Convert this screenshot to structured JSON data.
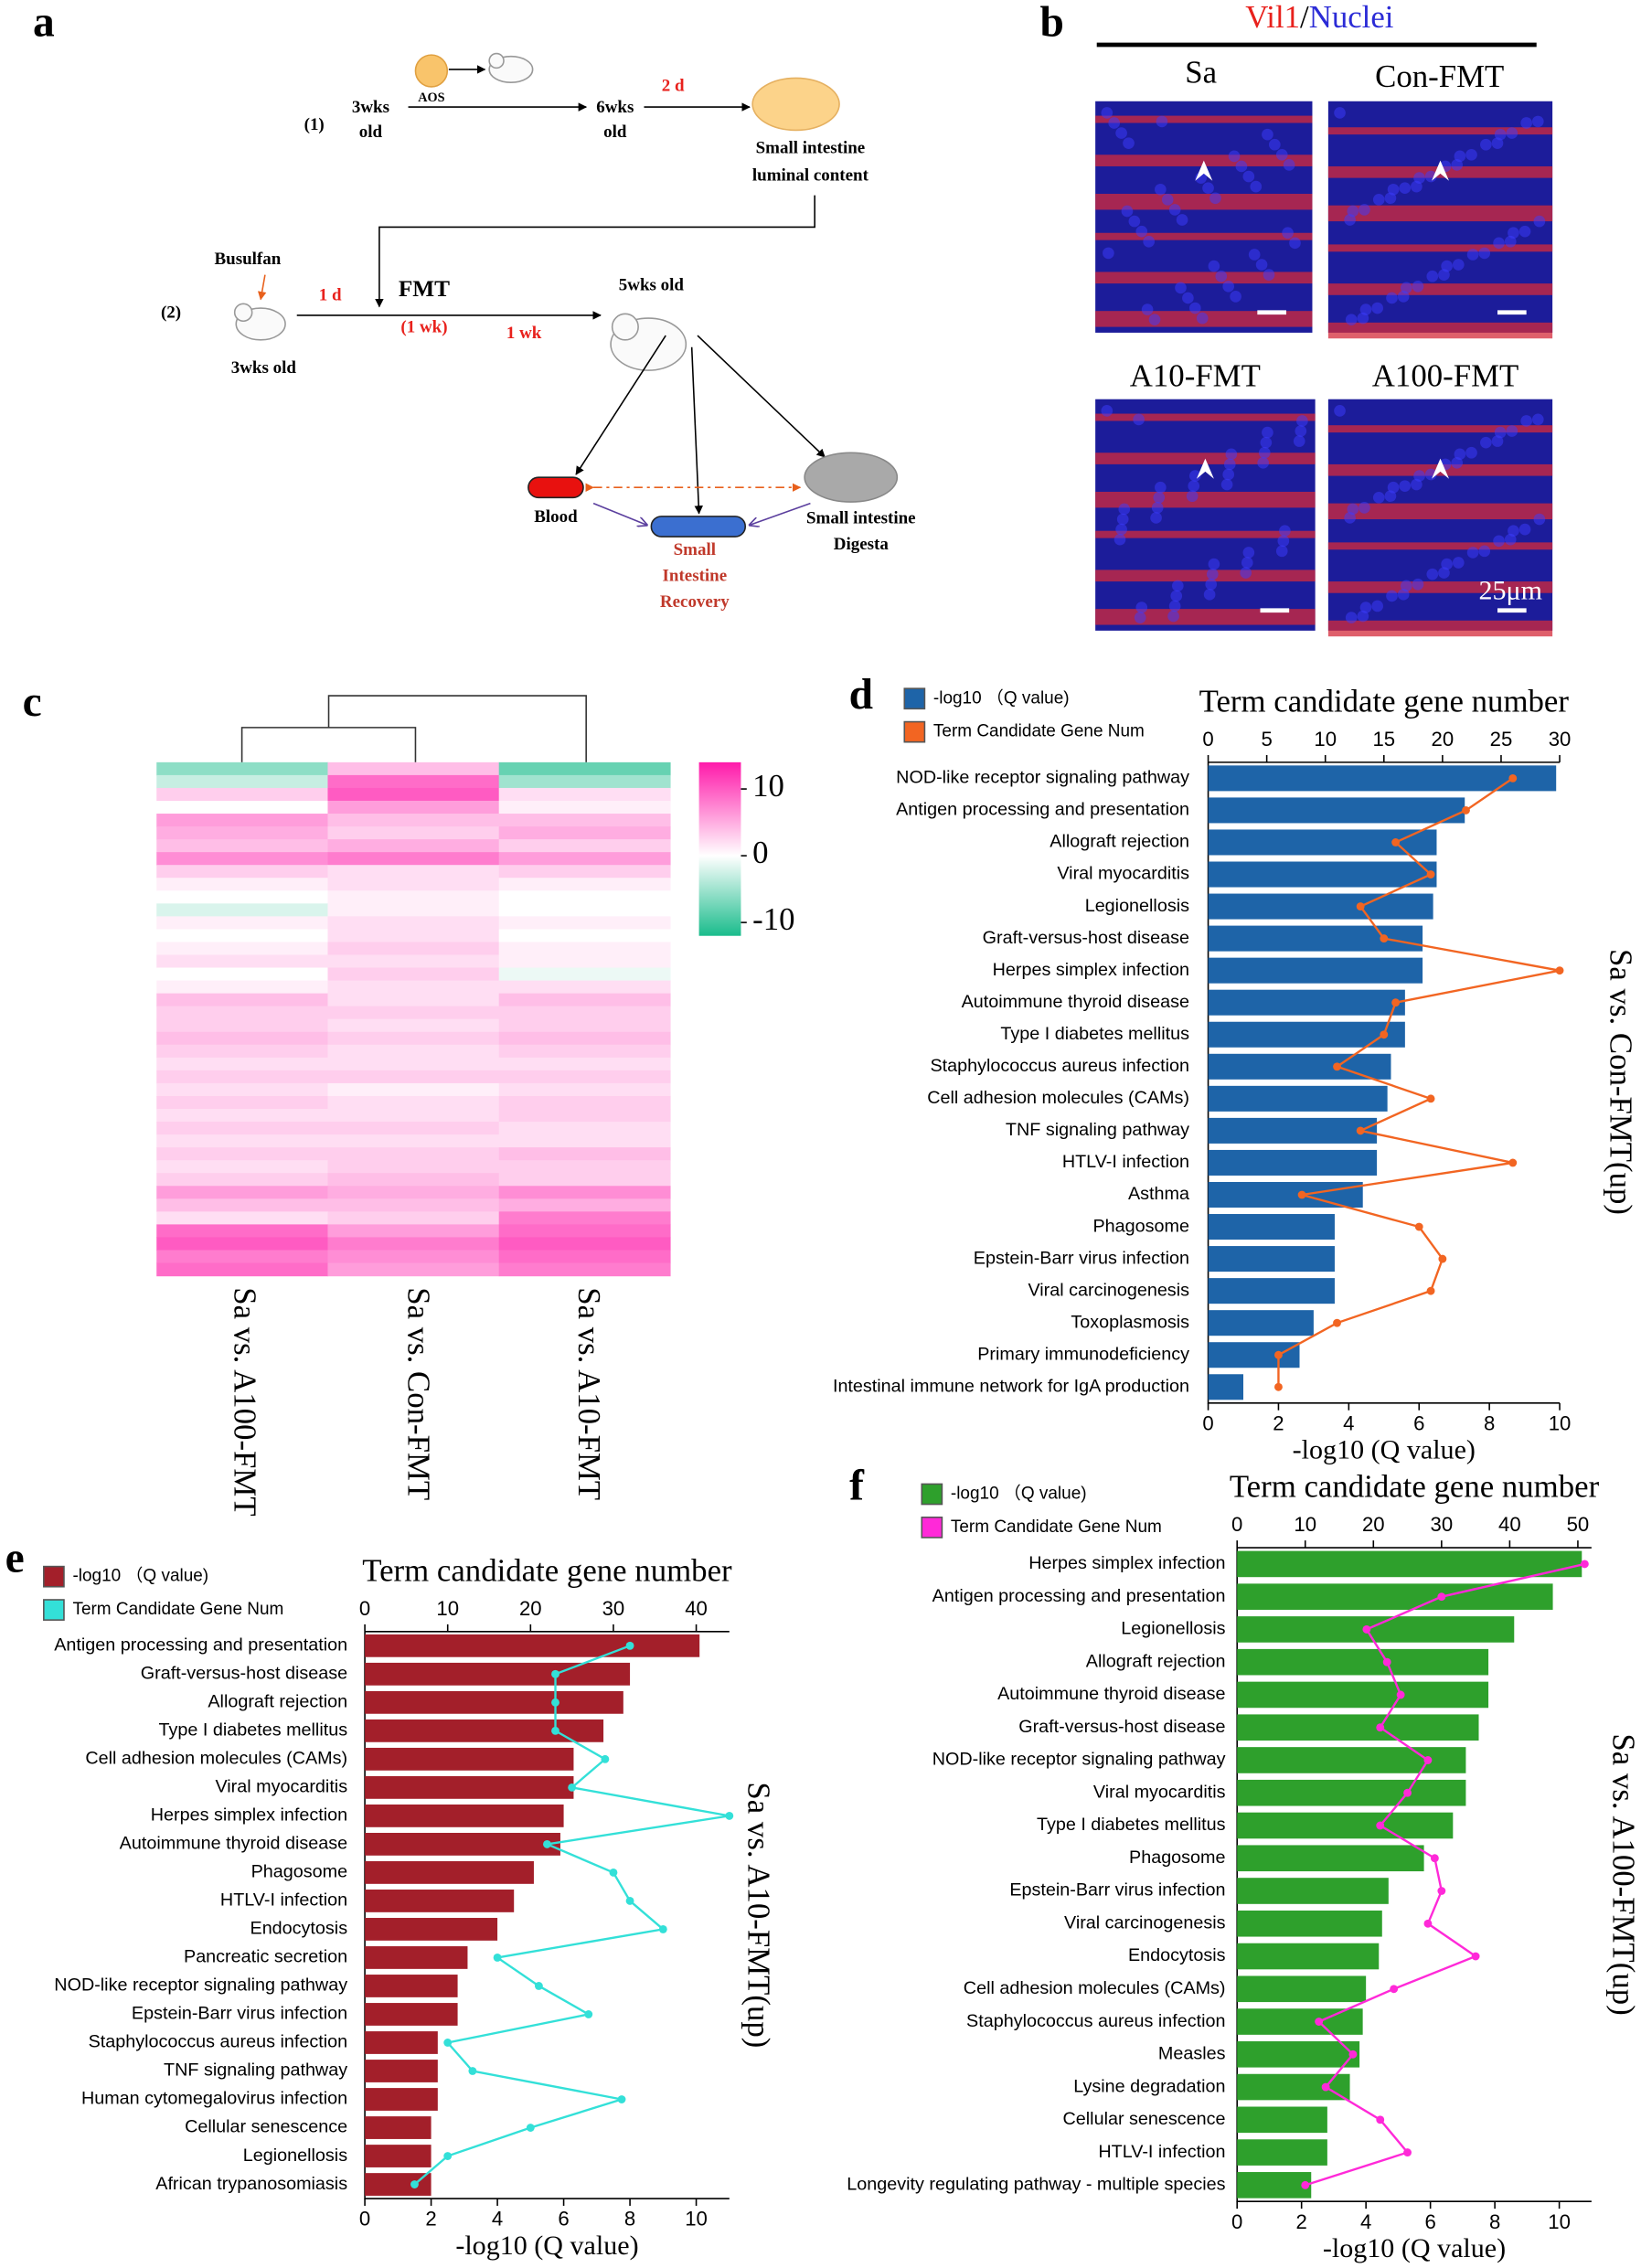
{
  "panel_a": {
    "label": "a",
    "aos": "AOS",
    "step1": "(1)",
    "age1": [
      "3wks",
      "old"
    ],
    "age2": [
      "6wks",
      "old"
    ],
    "days2": "2 d",
    "content": [
      "Small intestine",
      "luminal content"
    ],
    "busulfan": "Busulfan",
    "step2": "(2)",
    "age3": "3wks old",
    "days1": "1 d",
    "fmt": "FMT",
    "fmt_duration": "(1 wk)",
    "week": "1 wk",
    "age4": "5wks old",
    "blood": "Blood",
    "digesta": [
      "Small intestine",
      "Digesta"
    ],
    "recovery": [
      "Small",
      "Intestine",
      "Recovery"
    ]
  },
  "panel_b": {
    "label": "b",
    "marker": "Vil1",
    "separator": "/",
    "stain": "Nuclei",
    "groups": [
      "Sa",
      "Con-FMT",
      "A10-FMT",
      "A100-FMT"
    ],
    "scale_bar": "25μm"
  },
  "chart_data": [
    {
      "type": "heatmap",
      "label": "c",
      "categories": [
        "Sa vs. A100-FMT",
        "Sa vs. Con-FMT",
        "Sa vs. A10-FMT"
      ],
      "values": [
        [
          -6,
          4,
          -8
        ],
        [
          -3,
          9,
          -5
        ],
        [
          3,
          10,
          2
        ],
        [
          0,
          6,
          1
        ],
        [
          6,
          4,
          4
        ],
        [
          5,
          3,
          5
        ],
        [
          4,
          5,
          3
        ],
        [
          7,
          8,
          6
        ],
        [
          3,
          2,
          3
        ],
        [
          1,
          2,
          1
        ],
        [
          0,
          1,
          0
        ],
        [
          -2,
          1,
          0
        ],
        [
          1,
          2,
          1
        ],
        [
          0,
          2,
          0
        ],
        [
          1,
          3,
          1
        ],
        [
          2,
          2,
          1
        ],
        [
          0,
          3,
          -1
        ],
        [
          1,
          2,
          2
        ],
        [
          4,
          2,
          4
        ],
        [
          3,
          3,
          3
        ],
        [
          3,
          2,
          3
        ],
        [
          4,
          3,
          4
        ],
        [
          3,
          2,
          3
        ],
        [
          2,
          2,
          2
        ],
        [
          3,
          3,
          3
        ],
        [
          2,
          1,
          2
        ],
        [
          3,
          2,
          3
        ],
        [
          2,
          2,
          3
        ],
        [
          3,
          3,
          2
        ],
        [
          2,
          2,
          2
        ],
        [
          3,
          3,
          4
        ],
        [
          2,
          3,
          3
        ],
        [
          3,
          4,
          3
        ],
        [
          6,
          5,
          7
        ],
        [
          4,
          4,
          5
        ],
        [
          2,
          3,
          8
        ],
        [
          9,
          6,
          9
        ],
        [
          10,
          8,
          10
        ],
        [
          8,
          7,
          9
        ],
        [
          9,
          6,
          8
        ]
      ],
      "zlim": [
        -12,
        14
      ],
      "zticks": [
        10,
        0,
        -10
      ],
      "colors": [
        "#1abc8c",
        "#ffffff",
        "#ff1aaa"
      ]
    },
    {
      "type": "bar_line",
      "label": "d",
      "x2label": "Term candidate gene number",
      "xlabel": "-log10 (Q value)",
      "side_label": "Sa vs. Con-FMT(up)",
      "categories": [
        "NOD-like receptor signaling pathway",
        "Antigen processing and presentation",
        "Allograft rejection",
        "Viral myocarditis",
        "Legionellosis",
        "Graft-versus-host disease",
        "Herpes simplex infection",
        "Autoimmune thyroid disease",
        "Type I diabetes mellitus",
        "Staphylococcus aureus infection",
        "Cell adhesion molecules (CAMs)",
        "TNF signaling pathway",
        "HTLV-I infection",
        "Asthma",
        "Phagosome",
        "Epstein-Barr virus infection",
        "Viral carcinogenesis",
        "Toxoplasmosis",
        "Primary immunodeficiency",
        "Intestinal immune network for IgA production"
      ],
      "series": [
        {
          "name": "-log10 （Q value)",
          "color": "#1e64a8",
          "values": [
            9.9,
            7.3,
            6.5,
            6.5,
            6.4,
            6.1,
            6.1,
            5.6,
            5.6,
            5.2,
            5.1,
            4.8,
            4.8,
            4.4,
            3.6,
            3.6,
            3.6,
            3.0,
            2.6,
            1.0
          ]
        },
        {
          "name": "Term Candidate Gene Num",
          "color": "#f26522",
          "axis": "x2",
          "values": [
            26,
            22,
            16,
            19,
            13,
            15,
            30,
            16,
            15,
            11,
            19,
            13,
            26,
            8,
            18,
            20,
            19,
            11,
            6,
            6
          ]
        }
      ],
      "xlim": [
        0,
        10
      ],
      "xticks": [
        0,
        2,
        4,
        6,
        8,
        10
      ],
      "x2lim": [
        0,
        30
      ],
      "x2ticks": [
        0,
        5,
        10,
        15,
        20,
        25,
        30
      ]
    },
    {
      "type": "bar_line",
      "label": "e",
      "x2label": "Term candidate gene number",
      "xlabel": "-log10 (Q value)",
      "side_label": "Sa vs. A10-FMT(up)",
      "categories": [
        "Antigen processing and presentation",
        "Graft-versus-host disease",
        "Allograft rejection",
        "Type I diabetes mellitus",
        "Cell adhesion molecules (CAMs)",
        "Viral myocarditis",
        "Herpes simplex infection",
        "Autoimmune thyroid disease",
        "Phagosome",
        "HTLV-I infection",
        "Endocytosis",
        "Pancreatic secretion",
        "NOD-like receptor signaling pathway",
        "Epstein-Barr virus infection",
        "Staphylococcus aureus infection",
        "TNF signaling pathway",
        "Human cytomegalovirus infection",
        "Cellular senescence",
        "Legionellosis",
        "African trypanosomiasis"
      ],
      "series": [
        {
          "name": "-log10 （Q value)",
          "color": "#a31f2a",
          "values": [
            10.1,
            8.0,
            7.8,
            7.2,
            6.3,
            6.3,
            6.0,
            5.9,
            5.1,
            4.5,
            4.0,
            3.1,
            2.8,
            2.8,
            2.2,
            2.2,
            2.2,
            2.0,
            2.0,
            2.0
          ]
        },
        {
          "name": "Term Candidate Gene Num",
          "color": "#33e0d8",
          "axis": "x2",
          "values": [
            32,
            23,
            23,
            23,
            29,
            25,
            44,
            22,
            30,
            32,
            36,
            16,
            21,
            27,
            10,
            13,
            31,
            20,
            10,
            6
          ]
        }
      ],
      "xlim": [
        0,
        11
      ],
      "xticks": [
        0,
        2,
        4,
        6,
        8,
        10
      ],
      "x2lim": [
        0,
        44
      ],
      "x2ticks": [
        0,
        10,
        20,
        30,
        40
      ]
    },
    {
      "type": "bar_line",
      "label": "f",
      "x2label": "Term candidate gene number",
      "xlabel": "-log10 (Q value)",
      "side_label": "Sa vs. A100-FMT(up)",
      "categories": [
        "Herpes simplex infection",
        "Antigen processing and presentation",
        "Legionellosis",
        "Allograft rejection",
        "Autoimmune thyroid disease",
        "Graft-versus-host disease",
        "NOD-like receptor signaling pathway",
        "Viral myocarditis",
        "Type I diabetes mellitus",
        "Phagosome",
        "Epstein-Barr virus infection",
        "Viral carcinogenesis",
        "Endocytosis",
        "Cell adhesion molecules (CAMs)",
        "Staphylococcus aureus infection",
        "Measles",
        "Lysine degradation",
        "Cellular senescence",
        "HTLV-I infection",
        "Longevity regulating pathway - multiple species"
      ],
      "series": [
        {
          "name": "-log10 （Q value)",
          "color": "#2ea02c",
          "values": [
            10.7,
            9.8,
            8.6,
            7.8,
            7.8,
            7.5,
            7.1,
            7.1,
            6.7,
            5.8,
            4.7,
            4.5,
            4.4,
            4.0,
            3.9,
            3.8,
            3.5,
            2.8,
            2.8,
            2.3
          ]
        },
        {
          "name": "Term Candidate Gene Num",
          "color": "#ff29d8",
          "axis": "x2",
          "values": [
            51,
            30,
            19,
            22,
            24,
            21,
            28,
            25,
            21,
            29,
            30,
            28,
            35,
            23,
            12,
            17,
            13,
            21,
            25,
            10
          ]
        }
      ],
      "xlim": [
        0,
        11
      ],
      "xticks": [
        0,
        2,
        4,
        6,
        8,
        10
      ],
      "x2lim": [
        0,
        52
      ],
      "x2ticks": [
        0,
        10,
        20,
        30,
        40,
        50
      ]
    }
  ]
}
